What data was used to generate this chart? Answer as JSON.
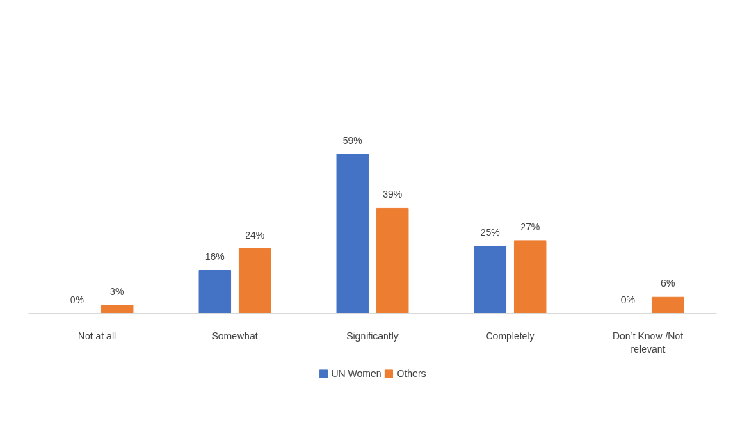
{
  "chart_data": {
    "type": "bar",
    "categories": [
      "Not at all",
      "Somewhat",
      "Significantly",
      "Completely",
      "Don’t Know /Not relevant"
    ],
    "series": [
      {
        "name": "UN Women",
        "color": "#4472c4",
        "values": [
          0,
          16,
          59,
          25,
          0
        ],
        "value_labels": [
          "0%",
          "16%",
          "59%",
          "25%",
          "0%"
        ]
      },
      {
        "name": "Others",
        "color": "#ed7d31",
        "values": [
          3,
          24,
          39,
          27,
          6
        ],
        "value_labels": [
          "3%",
          "24%",
          "39%",
          "27%",
          "6%"
        ]
      }
    ],
    "legend": "bottom"
  }
}
